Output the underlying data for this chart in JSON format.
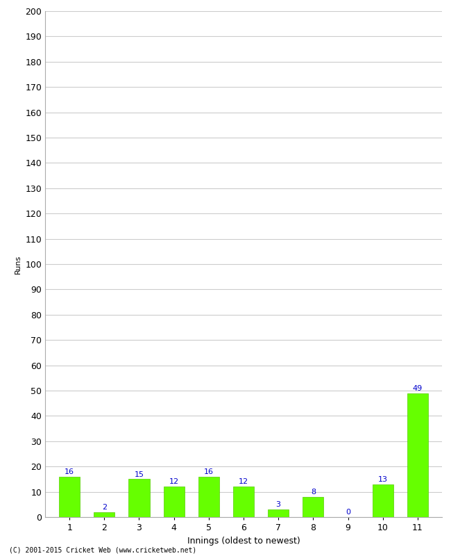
{
  "title": "",
  "categories": [
    "1",
    "2",
    "3",
    "4",
    "5",
    "6",
    "7",
    "8",
    "9",
    "10",
    "11"
  ],
  "values": [
    16,
    2,
    15,
    12,
    16,
    12,
    3,
    8,
    0,
    13,
    49
  ],
  "bar_color": "#66ff00",
  "bar_edge_color": "#55cc00",
  "label_color": "#0000cc",
  "xlabel": "Innings (oldest to newest)",
  "ylabel": "Runs",
  "ylim": [
    0,
    200
  ],
  "yticks": [
    0,
    10,
    20,
    30,
    40,
    50,
    60,
    70,
    80,
    90,
    100,
    110,
    120,
    130,
    140,
    150,
    160,
    170,
    180,
    190,
    200
  ],
  "background_color": "#ffffff",
  "grid_color": "#cccccc",
  "footer": "(C) 2001-2015 Cricket Web (www.cricketweb.net)",
  "label_fontsize": 8,
  "axis_fontsize": 9,
  "ylabel_fontsize": 8
}
